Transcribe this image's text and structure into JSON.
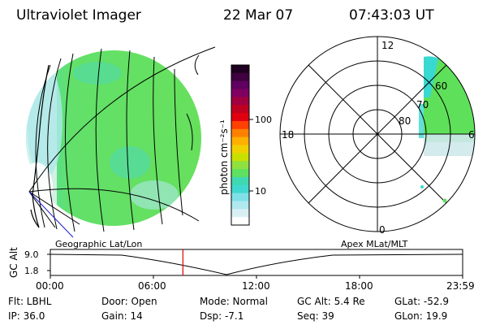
{
  "header": {
    "instrument": "Ultraviolet Imager",
    "date": "22 Mar 07",
    "time": "07:43:03 UT"
  },
  "colorbar": {
    "label": "photon cm⁻²s⁻¹",
    "ticks": [
      {
        "label": "100",
        "value": 100
      },
      {
        "label": "10",
        "value": 10
      }
    ],
    "scale": "log"
  },
  "polar_plot": {
    "mlt_labels": [
      "12",
      "18",
      "6",
      "0"
    ],
    "lat_labels": [
      "60",
      "70",
      "80"
    ]
  },
  "maps": {
    "left_label": "Geographic Lat/Lon",
    "right_label": "Apex MLat/MLT"
  },
  "altitude_plot": {
    "ylabel": "GC Alt",
    "yticks": [
      "9.0",
      "1.8"
    ],
    "xticks": [
      "00:00",
      "06:00",
      "12:00",
      "18:00",
      "23:59"
    ],
    "current_time": "07:43:03"
  },
  "info": {
    "flt": "Flt: LBHL",
    "ip": "IP: 36.0",
    "door": "Door: Open",
    "gain": "Gain: 14",
    "mode": "Mode: Normal",
    "dsp": "Dsp:    -7.1",
    "gc_alt": "GC Alt: 5.4 Re",
    "seq": "Seq: 39",
    "glat": "GLat: -52.9",
    "glon": "GLon:  19.9"
  },
  "colors": {
    "aurora_green": "#5fe05a",
    "aurora_cyan": "#38d9d0",
    "current_time_marker": "#e00000"
  }
}
